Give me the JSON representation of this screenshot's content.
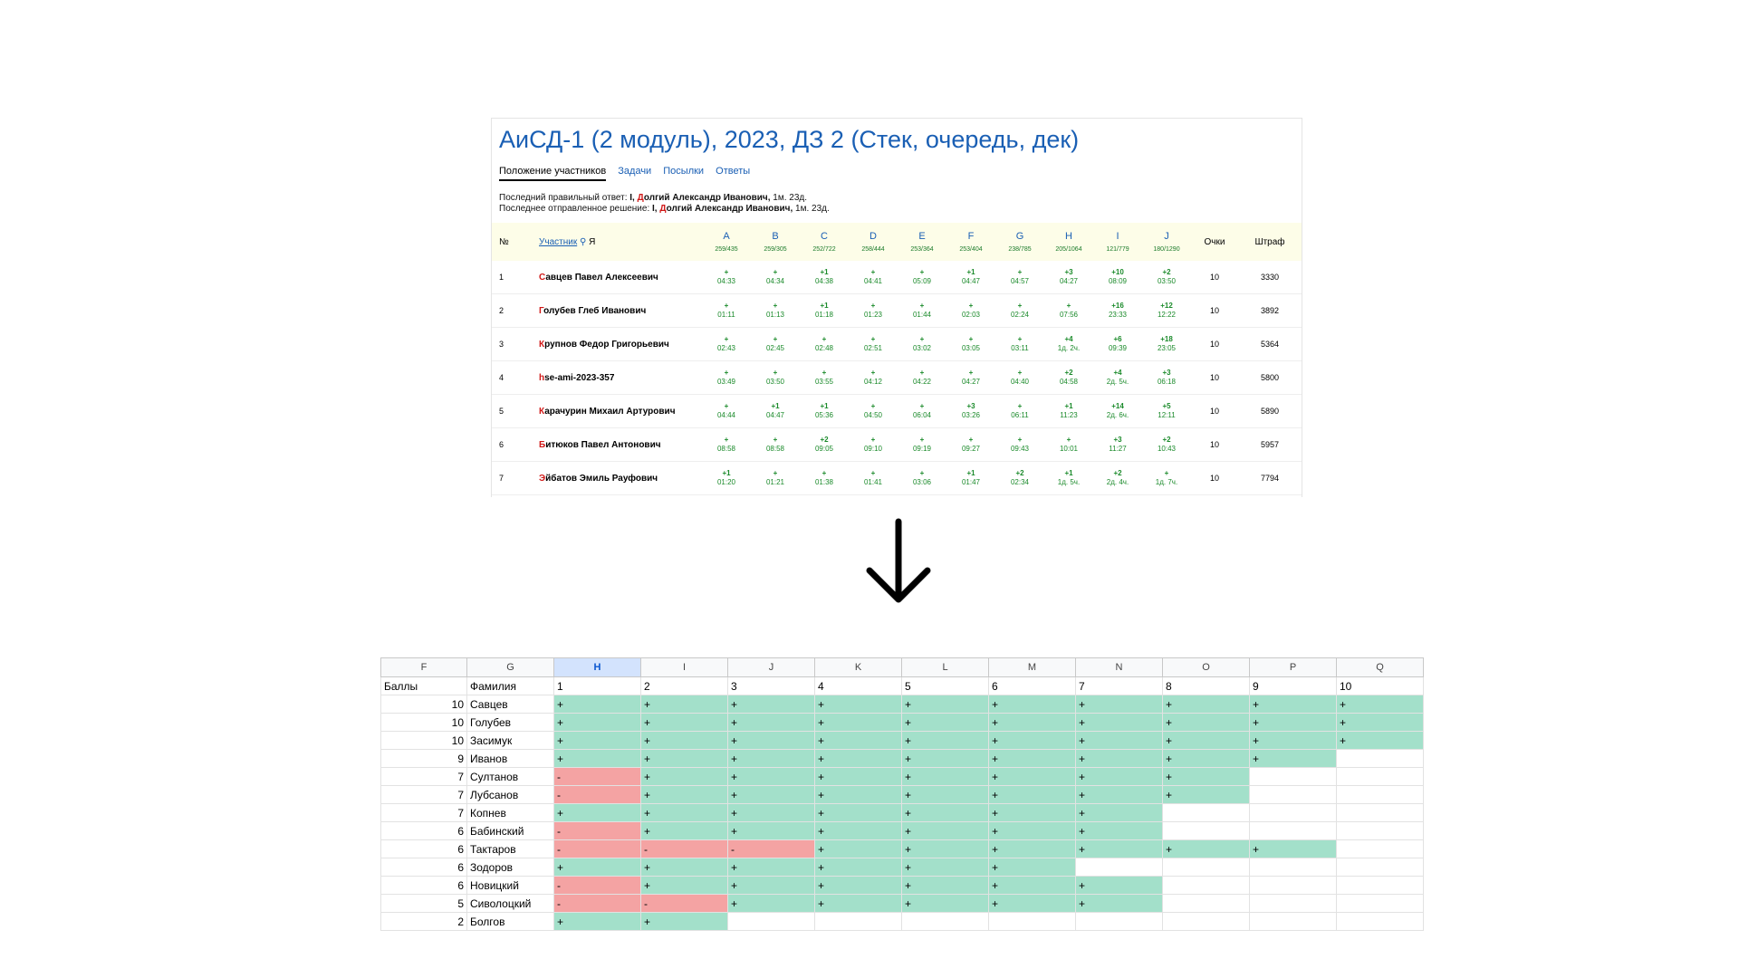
{
  "contest": {
    "title": "АиСД-1 (2 модуль), 2023, ДЗ 2 (Стек, очередь, дек)",
    "tabs": [
      {
        "label": "Положение участников",
        "active": true
      },
      {
        "label": "Задачи",
        "active": false
      },
      {
        "label": "Посылки",
        "active": false
      },
      {
        "label": "Ответы",
        "active": false
      }
    ],
    "last_correct": {
      "prefix": "Последний правильный ответ:",
      "problem": "I,",
      "name_first": "Д",
      "name_rest": "олгий Александр Иванович,",
      "time": "1м. 23д."
    },
    "last_submit": {
      "prefix": "Последнее отправленное решение:",
      "problem": "I,",
      "name_first": "Д",
      "name_rest": "олгий Александр Иванович,",
      "time": "1м. 23д."
    },
    "header": {
      "num": "№",
      "participant": "Участник",
      "me": "Я",
      "points": "Очки",
      "penalty": "Штраф"
    },
    "problems": [
      {
        "letter": "A",
        "stat": "259/435"
      },
      {
        "letter": "B",
        "stat": "259/305"
      },
      {
        "letter": "C",
        "stat": "252/722"
      },
      {
        "letter": "D",
        "stat": "258/444"
      },
      {
        "letter": "E",
        "stat": "253/364"
      },
      {
        "letter": "F",
        "stat": "253/404"
      },
      {
        "letter": "G",
        "stat": "238/785"
      },
      {
        "letter": "H",
        "stat": "205/1064"
      },
      {
        "letter": "I",
        "stat": "121/779"
      },
      {
        "letter": "J",
        "stat": "180/1290"
      }
    ],
    "rows": [
      {
        "num": "1",
        "first": "С",
        "rest": "авцев Павел Алексеевич",
        "me": false,
        "cells": [
          [
            "+",
            "04:33"
          ],
          [
            "+",
            "04:34"
          ],
          [
            "+1",
            "04:38"
          ],
          [
            "+",
            "04:41"
          ],
          [
            "+",
            "05:09"
          ],
          [
            "+1",
            "04:47"
          ],
          [
            "+",
            "04:57"
          ],
          [
            "+3",
            "04:27"
          ],
          [
            "+10",
            "08:09"
          ],
          [
            "+2",
            "03:50"
          ]
        ],
        "points": "10",
        "penalty": "3330"
      },
      {
        "num": "2",
        "first": "Г",
        "rest": "олубев Глеб Иванович",
        "me": true,
        "cells": [
          [
            "+",
            "01:11"
          ],
          [
            "+",
            "01:13"
          ],
          [
            "+1",
            "01:18"
          ],
          [
            "+",
            "01:23"
          ],
          [
            "+",
            "01:44"
          ],
          [
            "+",
            "02:03"
          ],
          [
            "+",
            "02:24"
          ],
          [
            "+",
            "07:56"
          ],
          [
            "+16",
            "23:33"
          ],
          [
            "+12",
            "12:22"
          ]
        ],
        "points": "10",
        "penalty": "3892"
      },
      {
        "num": "3",
        "first": "К",
        "rest": "рупнов Федор Григорьевич",
        "me": false,
        "cells": [
          [
            "+",
            "02:43"
          ],
          [
            "+",
            "02:45"
          ],
          [
            "+",
            "02:48"
          ],
          [
            "+",
            "02:51"
          ],
          [
            "+",
            "03:02"
          ],
          [
            "+",
            "03:05"
          ],
          [
            "+",
            "03:11"
          ],
          [
            "+4",
            "1д. 2ч."
          ],
          [
            "+6",
            "09:39"
          ],
          [
            "+18",
            "23:05"
          ]
        ],
        "points": "10",
        "penalty": "5364"
      },
      {
        "num": "4",
        "first": "h",
        "rest": "se-ami-2023-357",
        "me": false,
        "cells": [
          [
            "+",
            "03:49"
          ],
          [
            "+",
            "03:50"
          ],
          [
            "+",
            "03:55"
          ],
          [
            "+",
            "04:12"
          ],
          [
            "+",
            "04:22"
          ],
          [
            "+",
            "04:27"
          ],
          [
            "+",
            "04:40"
          ],
          [
            "+2",
            "04:58"
          ],
          [
            "+4",
            "2д. 5ч."
          ],
          [
            "+3",
            "06:18"
          ]
        ],
        "points": "10",
        "penalty": "5800"
      },
      {
        "num": "5",
        "first": "К",
        "rest": "арачурин Михаил Артурович",
        "me": false,
        "cells": [
          [
            "+",
            "04:44"
          ],
          [
            "+1",
            "04:47"
          ],
          [
            "+1",
            "05:36"
          ],
          [
            "+",
            "04:50"
          ],
          [
            "+",
            "06:04"
          ],
          [
            "+3",
            "03:26"
          ],
          [
            "+",
            "06:11"
          ],
          [
            "+1",
            "11:23"
          ],
          [
            "+14",
            "2д. 6ч."
          ],
          [
            "+5",
            "12:11"
          ]
        ],
        "points": "10",
        "penalty": "5890"
      },
      {
        "num": "6",
        "first": "Б",
        "rest": "итюков Павел Антонович",
        "me": false,
        "cells": [
          [
            "+",
            "08:58"
          ],
          [
            "+",
            "08:58"
          ],
          [
            "+2",
            "09:05"
          ],
          [
            "+",
            "09:10"
          ],
          [
            "+",
            "09:19"
          ],
          [
            "+",
            "09:27"
          ],
          [
            "+",
            "09:43"
          ],
          [
            "+",
            "10:01"
          ],
          [
            "+3",
            "11:27"
          ],
          [
            "+2",
            "10:43"
          ]
        ],
        "points": "10",
        "penalty": "5957"
      },
      {
        "num": "7",
        "first": "Э",
        "rest": "йбатов Эмиль Рауфович",
        "me": false,
        "cells": [
          [
            "+1",
            "01:20"
          ],
          [
            "+",
            "01:21"
          ],
          [
            "+",
            "01:38"
          ],
          [
            "+",
            "01:41"
          ],
          [
            "+",
            "03:06"
          ],
          [
            "+1",
            "01:47"
          ],
          [
            "+2",
            "02:34"
          ],
          [
            "+1",
            "1д. 5ч."
          ],
          [
            "+2",
            "2д. 4ч."
          ],
          [
            "+",
            "1д. 7ч."
          ]
        ],
        "points": "10",
        "penalty": "7794"
      }
    ]
  },
  "sheet": {
    "columns": [
      "F",
      "G",
      "H",
      "I",
      "J",
      "K",
      "L",
      "M",
      "N",
      "O",
      "P",
      "Q"
    ],
    "selected_column": "H",
    "header_row": {
      "score": "Баллы",
      "surname": "Фамилия",
      "tasks": [
        "1",
        "2",
        "3",
        "4",
        "5",
        "6",
        "7",
        "8",
        "9",
        "10"
      ]
    },
    "rows": [
      {
        "score": "10",
        "surname": "Савцев",
        "cells": [
          "+",
          "+",
          "+",
          "+",
          "+",
          "+",
          "+",
          "+",
          "+",
          "+"
        ]
      },
      {
        "score": "10",
        "surname": "Голубев",
        "cells": [
          "+",
          "+",
          "+",
          "+",
          "+",
          "+",
          "+",
          "+",
          "+",
          "+"
        ]
      },
      {
        "score": "10",
        "surname": "Засимук",
        "cells": [
          "+",
          "+",
          "+",
          "+",
          "+",
          "+",
          "+",
          "+",
          "+",
          "+"
        ]
      },
      {
        "score": "9",
        "surname": "Иванов",
        "cells": [
          "+",
          "+",
          "+",
          "+",
          "+",
          "+",
          "+",
          "+",
          "+",
          ""
        ]
      },
      {
        "score": "7",
        "surname": "Султанов",
        "cells": [
          "-",
          "+",
          "+",
          "+",
          "+",
          "+",
          "+",
          "+",
          "",
          ""
        ]
      },
      {
        "score": "7",
        "surname": "Лубсанов",
        "cells": [
          "-",
          "+",
          "+",
          "+",
          "+",
          "+",
          "+",
          "+",
          "",
          ""
        ]
      },
      {
        "score": "7",
        "surname": "Копнев",
        "cells": [
          "+",
          "+",
          "+",
          "+",
          "+",
          "+",
          "+",
          "",
          "",
          ""
        ]
      },
      {
        "score": "6",
        "surname": "Бабинский",
        "cells": [
          "-",
          "+",
          "+",
          "+",
          "+",
          "+",
          "+",
          "",
          "",
          ""
        ]
      },
      {
        "score": "6",
        "surname": "Тактаров",
        "cells": [
          "-",
          "-",
          "-",
          "+",
          "+",
          "+",
          "+",
          "+",
          "+",
          ""
        ]
      },
      {
        "score": "6",
        "surname": "Зодоров",
        "cells": [
          "+",
          "+",
          "+",
          "+",
          "+",
          "+",
          "",
          "",
          "",
          ""
        ]
      },
      {
        "score": "6",
        "surname": "Новицкий",
        "cells": [
          "-",
          "+",
          "+",
          "+",
          "+",
          "+",
          "+",
          "",
          "",
          ""
        ]
      },
      {
        "score": "5",
        "surname": "Сиволоцкий",
        "cells": [
          "-",
          "-",
          "+",
          "+",
          "+",
          "+",
          "+",
          "",
          "",
          ""
        ]
      },
      {
        "score": "2",
        "surname": "Болгов",
        "cells": [
          "+",
          "+",
          "",
          "",
          "",
          "",
          "",
          "",
          "",
          ""
        ]
      }
    ]
  }
}
